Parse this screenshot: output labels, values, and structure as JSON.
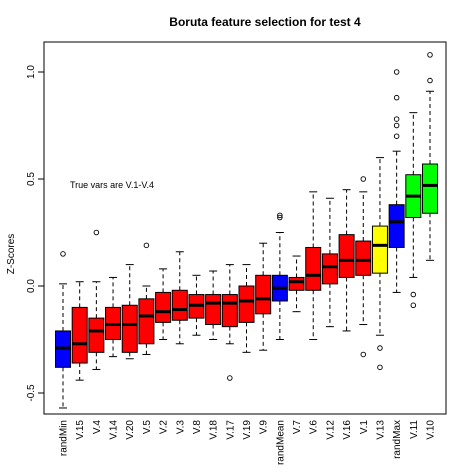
{
  "chart_data": {
    "type": "boxplot",
    "title": "Boruta feature selection for test 4",
    "xlabel": "",
    "ylabel": "Z-Scores",
    "ylim": [
      -0.6,
      1.1
    ],
    "yticks": [
      -0.5,
      0.0,
      0.5,
      1.0
    ],
    "ytick_labels": [
      "-0.5",
      "0.0",
      "0.5",
      "1.0"
    ],
    "annotation": "True vars are V.1-V.4",
    "grid": false,
    "colors": {
      "shadow": "#0000ff",
      "rejected": "#ff0000",
      "tentative": "#ffff00",
      "confirmed": "#00ff00",
      "border": "#000000"
    },
    "boxes": [
      {
        "label": "randMin",
        "status": "shadow",
        "whisker_low": -0.57,
        "q1": -0.38,
        "median": -0.29,
        "q3": -0.21,
        "whisker_high": 0.01,
        "outliers": [
          0.15
        ]
      },
      {
        "label": "V.15",
        "status": "rejected",
        "whisker_low": -0.44,
        "q1": -0.36,
        "median": -0.27,
        "q3": -0.1,
        "whisker_high": 0.02,
        "outliers": []
      },
      {
        "label": "V.4",
        "status": "rejected",
        "whisker_low": -0.39,
        "q1": -0.31,
        "median": -0.21,
        "q3": -0.15,
        "whisker_high": 0.02,
        "outliers": [
          0.25
        ]
      },
      {
        "label": "V.14",
        "status": "rejected",
        "whisker_low": -0.33,
        "q1": -0.25,
        "median": -0.18,
        "q3": -0.1,
        "whisker_high": 0.04,
        "outliers": []
      },
      {
        "label": "V.20",
        "status": "rejected",
        "whisker_low": -0.34,
        "q1": -0.31,
        "median": -0.18,
        "q3": -0.09,
        "whisker_high": 0.1,
        "outliers": []
      },
      {
        "label": "V.5",
        "status": "rejected",
        "whisker_low": -0.32,
        "q1": -0.27,
        "median": -0.14,
        "q3": -0.06,
        "whisker_high": 0.0,
        "outliers": [
          0.19
        ]
      },
      {
        "label": "V.2",
        "status": "rejected",
        "whisker_low": -0.25,
        "q1": -0.17,
        "median": -0.12,
        "q3": -0.03,
        "whisker_high": 0.08,
        "outliers": []
      },
      {
        "label": "V.3",
        "status": "rejected",
        "whisker_low": -0.27,
        "q1": -0.16,
        "median": -0.11,
        "q3": -0.02,
        "whisker_high": 0.16,
        "outliers": []
      },
      {
        "label": "V.8",
        "status": "rejected",
        "whisker_low": -0.23,
        "q1": -0.15,
        "median": -0.09,
        "q3": -0.04,
        "whisker_high": 0.05,
        "outliers": []
      },
      {
        "label": "V.18",
        "status": "rejected",
        "whisker_low": -0.25,
        "q1": -0.18,
        "median": -0.08,
        "q3": -0.04,
        "whisker_high": 0.07,
        "outliers": []
      },
      {
        "label": "V.17",
        "status": "rejected",
        "whisker_low": -0.27,
        "q1": -0.19,
        "median": -0.08,
        "q3": -0.04,
        "whisker_high": 0.1,
        "outliers": [
          -0.43
        ]
      },
      {
        "label": "V.19",
        "status": "rejected",
        "whisker_low": -0.31,
        "q1": -0.17,
        "median": -0.07,
        "q3": 0.0,
        "whisker_high": 0.1,
        "outliers": []
      },
      {
        "label": "V.9",
        "status": "rejected",
        "whisker_low": -0.3,
        "q1": -0.13,
        "median": -0.06,
        "q3": 0.05,
        "whisker_high": 0.2,
        "outliers": []
      },
      {
        "label": "randMean",
        "status": "shadow",
        "whisker_low": -0.25,
        "q1": -0.07,
        "median": -0.01,
        "q3": 0.05,
        "whisker_high": 0.25,
        "outliers": [
          0.32,
          0.33
        ]
      },
      {
        "label": "V.7",
        "status": "rejected",
        "whisker_low": -0.12,
        "q1": -0.02,
        "median": 0.02,
        "q3": 0.04,
        "whisker_high": 0.14,
        "outliers": []
      },
      {
        "label": "V.6",
        "status": "rejected",
        "whisker_low": -0.25,
        "q1": -0.02,
        "median": 0.05,
        "q3": 0.18,
        "whisker_high": 0.44,
        "outliers": []
      },
      {
        "label": "V.12",
        "status": "rejected",
        "whisker_low": -0.19,
        "q1": 0.01,
        "median": 0.09,
        "q3": 0.15,
        "whisker_high": 0.41,
        "outliers": []
      },
      {
        "label": "V.16",
        "status": "rejected",
        "whisker_low": -0.21,
        "q1": 0.04,
        "median": 0.12,
        "q3": 0.24,
        "whisker_high": 0.45,
        "outliers": []
      },
      {
        "label": "V.1",
        "status": "rejected",
        "whisker_low": -0.18,
        "q1": 0.05,
        "median": 0.12,
        "q3": 0.21,
        "whisker_high": 0.44,
        "outliers": [
          -0.32,
          0.5
        ]
      },
      {
        "label": "V.13",
        "status": "tentative",
        "whisker_low": -0.23,
        "q1": 0.06,
        "median": 0.19,
        "q3": 0.28,
        "whisker_high": 0.6,
        "outliers": [
          -0.29,
          -0.38
        ]
      },
      {
        "label": "randMax",
        "status": "shadow",
        "whisker_low": -0.03,
        "q1": 0.18,
        "median": 0.3,
        "q3": 0.38,
        "whisker_high": 0.63,
        "outliers": [
          0.7,
          0.75,
          0.78,
          0.88,
          1.0
        ]
      },
      {
        "label": "V.11",
        "status": "confirmed",
        "whisker_low": 0.04,
        "q1": 0.32,
        "median": 0.42,
        "q3": 0.52,
        "whisker_high": 0.81,
        "outliers": [
          -0.04,
          -0.09
        ]
      },
      {
        "label": "V.10",
        "status": "confirmed",
        "whisker_low": 0.12,
        "q1": 0.34,
        "median": 0.47,
        "q3": 0.57,
        "whisker_high": 0.91,
        "outliers": [
          0.96,
          1.08
        ]
      }
    ]
  }
}
